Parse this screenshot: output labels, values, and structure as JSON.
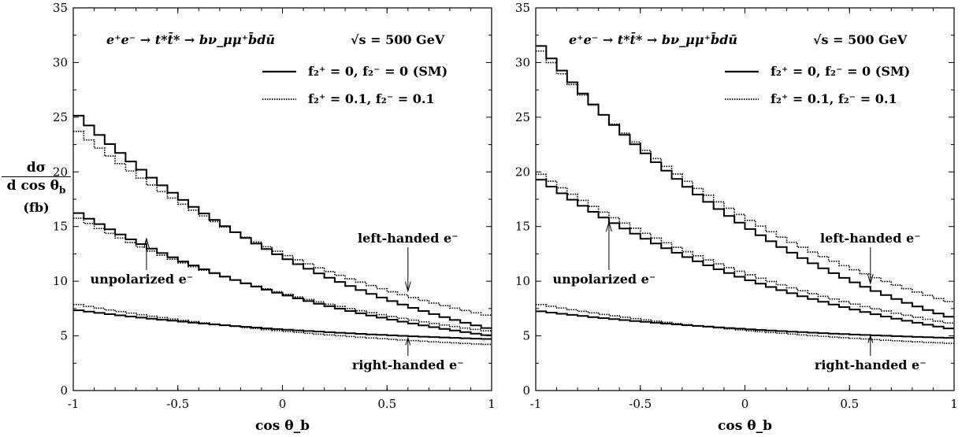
{
  "chart_data": [
    {
      "type": "line",
      "step": true,
      "title": "e⁺e⁻ → t*t̄* → bν_μμ⁺b̄dū",
      "subtitle": "√s = 500 GeV",
      "xlabel": "cos θ_b",
      "ylabel": "dσ / d cos θ_b",
      "yunit": "(fb)",
      "xlim": [
        -1,
        1
      ],
      "ylim": [
        0,
        35
      ],
      "xticks": [
        "-1",
        "-0.5",
        "0",
        "0.5",
        "1"
      ],
      "yticks": [
        "0",
        "5",
        "10",
        "15",
        "20",
        "25",
        "30",
        "35"
      ],
      "legend_position": "top-right",
      "legend": [
        {
          "label": "f₂⁺ = 0, f₂⁻ = 0 (SM)",
          "style": "solid"
        },
        {
          "label": "f₂⁺ = 0.1, f₂⁻ = 0.1",
          "style": "dotted"
        }
      ],
      "annotations": [
        {
          "text": "left-handed e⁻",
          "x": 0.6,
          "y": 9.1
        },
        {
          "text": "unpolarized e⁻",
          "x": -0.65,
          "y": 13.9
        },
        {
          "text": "right-handed e⁻",
          "x": 0.6,
          "y": 4.8
        }
      ],
      "series": [
        {
          "group": "left-handed e⁻",
          "style": "solid",
          "y_start": 25.6,
          "y_end": 5.6
        },
        {
          "group": "left-handed e⁻",
          "style": "dotted",
          "y_start": 24.1,
          "y_end": 6.8
        },
        {
          "group": "unpolarized e⁻",
          "style": "solid",
          "y_start": 16.5,
          "y_end": 5.0
        },
        {
          "group": "unpolarized e⁻",
          "style": "dotted",
          "y_start": 16.0,
          "y_end": 5.4
        },
        {
          "group": "right-handed e⁻",
          "style": "solid",
          "y_start": 7.4,
          "y_end": 4.7
        },
        {
          "group": "right-handed e⁻",
          "style": "dotted",
          "y_start": 7.95,
          "y_end": 4.2
        }
      ]
    },
    {
      "type": "line",
      "step": true,
      "title": "e⁺e⁻ → t*t̄* → bν_μμ⁺b̄dū",
      "subtitle": "√s = 500 GeV",
      "xlabel": "cos θ_b",
      "ylabel": "",
      "xlim": [
        -1,
        1
      ],
      "ylim": [
        0,
        35
      ],
      "xticks": [
        "-1",
        "-0.5",
        "0",
        "0.5",
        "1"
      ],
      "yticks": [
        "0",
        "5",
        "10",
        "15",
        "20",
        "25",
        "30",
        "35"
      ],
      "legend_position": "top-right",
      "legend": [
        {
          "label": "f₂⁺ = 0, f₂⁻ = 0 (SM)",
          "style": "solid"
        },
        {
          "label": "f₂⁺ = 0.1, f₂⁻ = 0.1",
          "style": "dotted"
        }
      ],
      "annotations": [
        {
          "text": "left-handed e⁻",
          "x": 0.6,
          "y": 9.8
        },
        {
          "text": "unpolarized e⁻",
          "x": -0.65,
          "y": 15.4
        },
        {
          "text": "right-handed e⁻",
          "x": 0.6,
          "y": 5.0
        }
      ],
      "series": [
        {
          "group": "left-handed e⁻",
          "style": "solid",
          "y_start": 32.1,
          "y_end": 6.6
        },
        {
          "group": "left-handed e⁻",
          "style": "dotted",
          "y_start": 31.6,
          "y_end": 8.0
        },
        {
          "group": "unpolarized e⁻",
          "style": "solid",
          "y_start": 19.6,
          "y_end": 5.6
        },
        {
          "group": "unpolarized e⁻",
          "style": "dotted",
          "y_start": 20.1,
          "y_end": 6.1
        },
        {
          "group": "right-handed e⁻",
          "style": "solid",
          "y_start": 7.3,
          "y_end": 4.8
        },
        {
          "group": "right-handed e⁻",
          "style": "dotted",
          "y_start": 7.95,
          "y_end": 4.3
        }
      ]
    }
  ]
}
